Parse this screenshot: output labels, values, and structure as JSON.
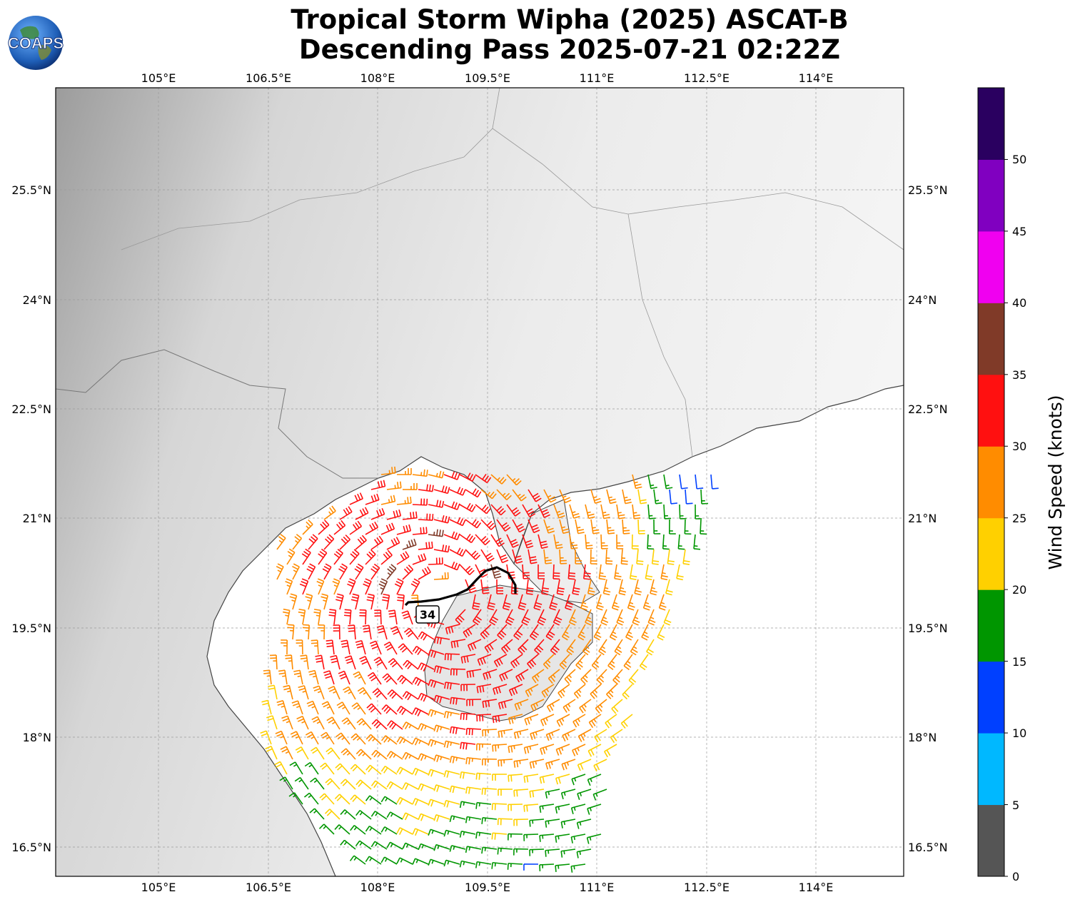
{
  "title": {
    "line1": "Tropical Storm Wipha (2025) ASCAT-B",
    "line2": "Descending Pass 2025-07-21 02:22Z"
  },
  "logo": {
    "text": "COAPS",
    "icon": "globe-logo-icon"
  },
  "map": {
    "lon_range": [
      104.0,
      115.6
    ],
    "lat_range": [
      16.1,
      26.9
    ],
    "lon_ticks": [
      "105°E",
      "106.5°E",
      "108°E",
      "109.5°E",
      "111°E",
      "112.5°E",
      "114°E"
    ],
    "lat_ticks": [
      "16.5°N",
      "18°N",
      "19.5°N",
      "21°N",
      "22.5°N",
      "24°N",
      "25.5°N"
    ],
    "storm_label": "34",
    "grid": true,
    "background": "grayscale terrain"
  },
  "colorbar": {
    "label": "Wind Speed (knots)",
    "ticks": [
      "0",
      "5",
      "10",
      "15",
      "20",
      "25",
      "30",
      "35",
      "40",
      "45",
      "50"
    ],
    "bins": [
      {
        "min": 0,
        "max": 5,
        "color": "#555555"
      },
      {
        "min": 5,
        "max": 10,
        "color": "#00b8ff"
      },
      {
        "min": 10,
        "max": 15,
        "color": "#0040ff"
      },
      {
        "min": 15,
        "max": 20,
        "color": "#009600"
      },
      {
        "min": 20,
        "max": 25,
        "color": "#ffd000"
      },
      {
        "min": 25,
        "max": 30,
        "color": "#ff8c00"
      },
      {
        "min": 30,
        "max": 35,
        "color": "#ff1010"
      },
      {
        "min": 35,
        "max": 40,
        "color": "#803a28"
      },
      {
        "min": 40,
        "max": 45,
        "color": "#f000f0"
      },
      {
        "min": 45,
        "max": 50,
        "color": "#8000c0"
      },
      {
        "min": 50,
        "max": 55,
        "color": "#2a0060"
      }
    ]
  }
}
